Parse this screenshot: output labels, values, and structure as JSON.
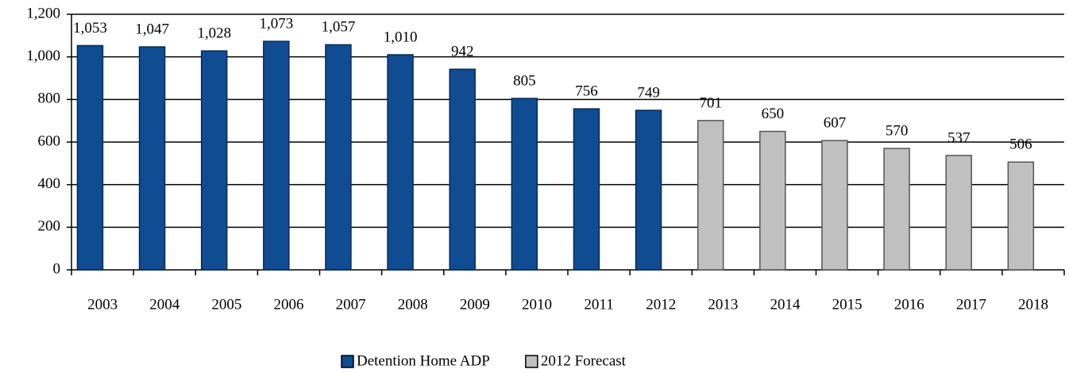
{
  "chart_data": {
    "type": "bar",
    "categories": [
      "2003",
      "2004",
      "2005",
      "2006",
      "2007",
      "2008",
      "2009",
      "2010",
      "2011",
      "2012",
      "2013",
      "2014",
      "2015",
      "2016",
      "2017",
      "2018"
    ],
    "series": [
      {
        "name": "Detention Home ADP",
        "color": "#0f4c92",
        "values": [
          1053,
          1047,
          1028,
          1073,
          1057,
          1010,
          942,
          805,
          756,
          749,
          null,
          null,
          null,
          null,
          null,
          null
        ],
        "value_labels": [
          "1,053",
          "1,047",
          "1,028",
          "1,073",
          "1,057",
          "1,010",
          "942",
          "805",
          "756",
          "749",
          null,
          null,
          null,
          null,
          null,
          null
        ]
      },
      {
        "name": "2012 Forecast",
        "color": "#c0c0c0",
        "values": [
          null,
          null,
          null,
          null,
          null,
          null,
          null,
          null,
          null,
          null,
          701,
          650,
          607,
          570,
          537,
          506
        ],
        "value_labels": [
          null,
          null,
          null,
          null,
          null,
          null,
          null,
          null,
          null,
          null,
          "701",
          "650",
          "607",
          "570",
          "537",
          "506"
        ]
      }
    ],
    "ylim": [
      0,
      1200
    ],
    "yticks": [
      0,
      200,
      400,
      600,
      800,
      {
        "value": 1000,
        "label": "1,000"
      },
      {
        "value": 1200,
        "label": "1,200"
      }
    ],
    "grid": true,
    "legend": "bottom"
  }
}
